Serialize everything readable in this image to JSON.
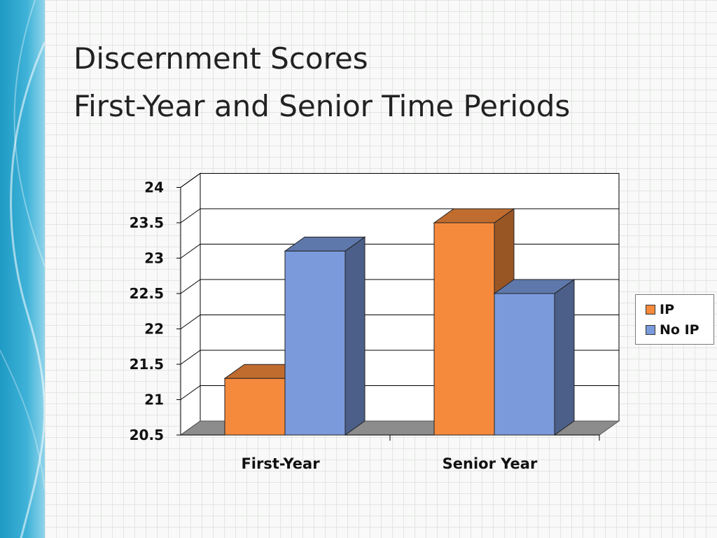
{
  "slide": {
    "title_line1": "Discernment Scores",
    "title_line2": "First-Year and Senior Time Periods"
  },
  "chart_data": {
    "type": "bar",
    "categories": [
      "First-Year",
      "Senior Year"
    ],
    "series": [
      {
        "name": "IP",
        "values": [
          21.3,
          23.5
        ],
        "color": "#f68a3c"
      },
      {
        "name": "No IP",
        "values": [
          23.1,
          22.5
        ],
        "color": "#7a9adb"
      }
    ],
    "ylim": [
      20.5,
      24
    ],
    "yticks": [
      "20.5",
      "21",
      "21.5",
      "22",
      "22.5",
      "23",
      "23.5",
      "24"
    ],
    "grid": true,
    "legend_position": "right",
    "style": "3d-column"
  },
  "colors": {
    "accent_band": "#1e9ac4"
  }
}
